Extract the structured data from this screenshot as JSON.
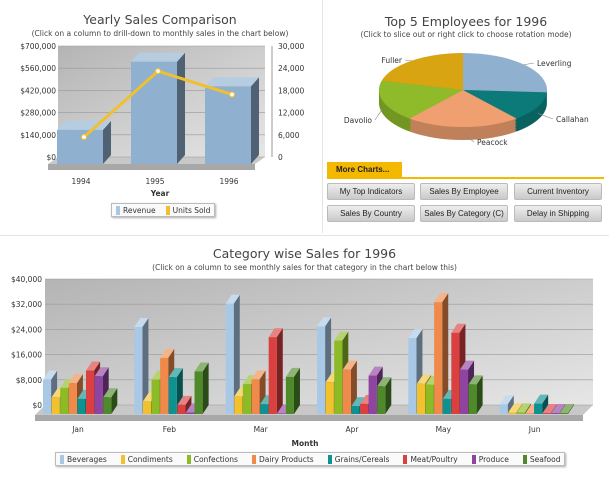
{
  "colors": {
    "tab": "#f4b800",
    "revenue": "#9dbad6",
    "units": "#f0c030"
  },
  "more_charts": {
    "tab_label": "More Charts...",
    "buttons": [
      "My Top Indicators",
      "Sales By Employee",
      "Current Inventory",
      "Sales By Country",
      "Sales By Category (C)",
      "Delay in Shipping"
    ]
  },
  "chart_data": [
    {
      "type": "bar",
      "title": "Yearly Sales Comparison",
      "subtitle": "(Click on a column to drill-down to monthly sales in the chart below)",
      "xlabel": "Year",
      "categories": [
        "1994",
        "1995",
        "1996"
      ],
      "y_ticks": [
        "$0",
        "$140,000",
        "$280,000",
        "$420,000",
        "$560,000",
        "$700,000"
      ],
      "y2_ticks": [
        "0",
        "6,000",
        "12,000",
        "18,000",
        "24,000",
        "30,000"
      ],
      "ylim": [
        0,
        700000
      ],
      "y2lim": [
        0,
        30000
      ],
      "grid": true,
      "legend": "bottom",
      "series": [
        {
          "name": "Revenue",
          "type": "bar",
          "axis": "left",
          "color": "#9dbad6",
          "values": [
            215000,
            645000,
            490000
          ]
        },
        {
          "name": "Units Sold",
          "type": "line",
          "axis": "right",
          "color": "#f0c030",
          "values": [
            5400,
            23200,
            16900
          ]
        }
      ]
    },
    {
      "type": "pie",
      "title": "Top 5 Employees for 1996",
      "subtitle": "(Click to slice out or right click to choose rotation mode)",
      "slices": [
        {
          "label": "Leverling",
          "value": 26,
          "color": "#8fb0cf"
        },
        {
          "label": "Callahan",
          "value": 13,
          "color": "#0c7a78"
        },
        {
          "label": "Peacock",
          "value": 22,
          "color": "#f0a070"
        },
        {
          "label": "Davolio",
          "value": 18,
          "color": "#8fbb2a"
        },
        {
          "label": "Fuller",
          "value": 21,
          "color": "#d8a412"
        }
      ]
    },
    {
      "type": "bar",
      "title": "Category wise Sales for 1996",
      "subtitle": "(Click on a column to see monthly sales for that category in the chart below this)",
      "xlabel": "Month",
      "categories": [
        "Jan",
        "Feb",
        "Mar",
        "Apr",
        "May",
        "Jun"
      ],
      "y_ticks": [
        "$0",
        "$8,000",
        "$16,000",
        "$24,000",
        "$32,000",
        "$40,000"
      ],
      "ylim": [
        0,
        40000
      ],
      "grid": true,
      "legend": "bottom",
      "series": [
        {
          "name": "Beverages",
          "color": "#a9c8e6",
          "values": [
            10900,
            27600,
            35000,
            27800,
            24100,
            3100
          ]
        },
        {
          "name": "Condiments",
          "color": "#f2c12e",
          "values": [
            5300,
            4000,
            5600,
            10100,
            9600,
            500
          ]
        },
        {
          "name": "Confections",
          "color": "#8dbb25",
          "values": [
            8300,
            10900,
            9500,
            23300,
            9300,
            500
          ]
        },
        {
          "name": "Dairy Products",
          "color": "#f08a4b",
          "values": [
            9800,
            17800,
            11000,
            14100,
            35500,
            200
          ]
        },
        {
          "name": "Grains/Cereals",
          "color": "#0e9191",
          "values": [
            4800,
            11700,
            3100,
            2500,
            4800,
            3300
          ]
        },
        {
          "name": "Meat/Poultry",
          "color": "#d9403f",
          "values": [
            13800,
            2900,
            24400,
            3200,
            25800,
            300
          ]
        },
        {
          "name": "Produce",
          "color": "#8e44a0",
          "values": [
            12000,
            500,
            200,
            12200,
            14100,
            300
          ]
        },
        {
          "name": "Seafood",
          "color": "#4f8a2a",
          "values": [
            5300,
            13500,
            11800,
            8800,
            9400,
            300
          ]
        }
      ]
    }
  ]
}
